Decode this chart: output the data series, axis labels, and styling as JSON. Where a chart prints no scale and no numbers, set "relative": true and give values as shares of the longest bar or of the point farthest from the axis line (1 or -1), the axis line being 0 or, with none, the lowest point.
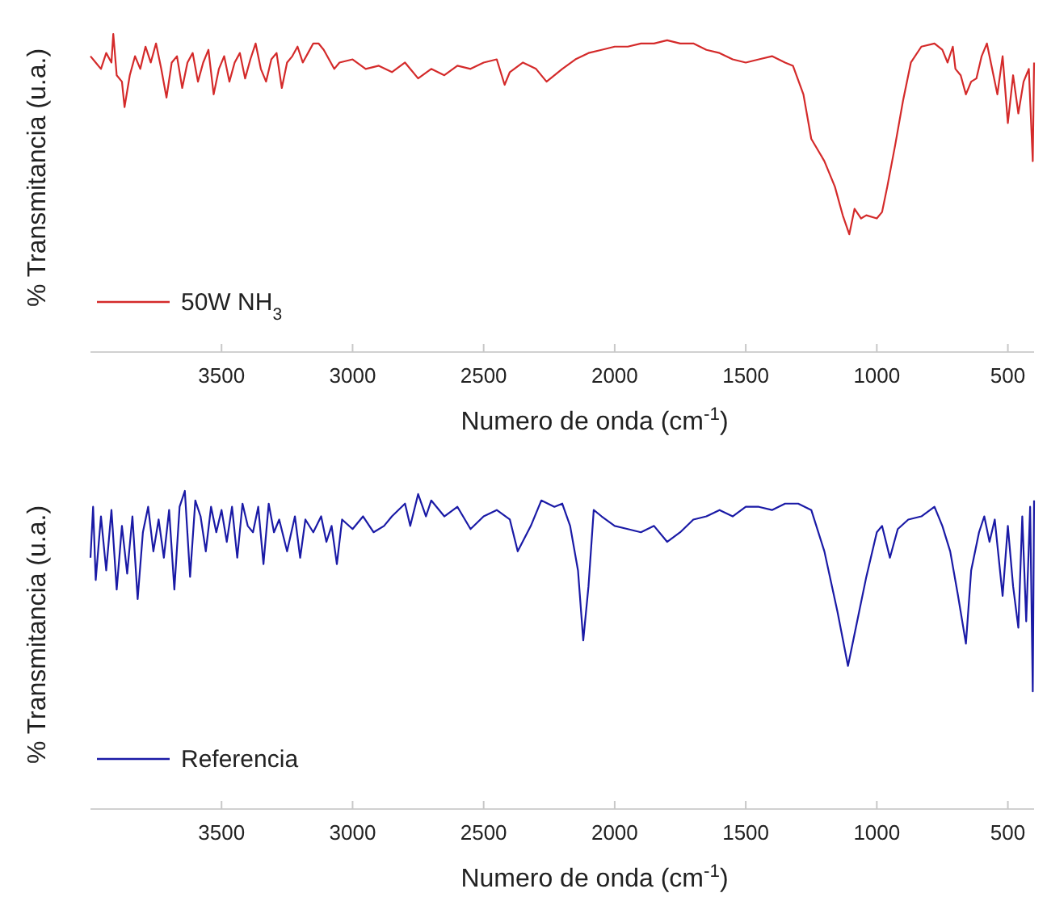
{
  "chart_data": [
    {
      "type": "line",
      "xlabel": "Numero de onda (cm$^{-1}$)",
      "ylabel": "% Transmitancia (u.a.)",
      "relative": true,
      "xlim": [
        4000,
        400
      ],
      "xticks": [
        3500,
        3000,
        2500,
        2000,
        1500,
        1000,
        500
      ],
      "tick_labels": "x",
      "legend": "bottom left",
      "grid": false,
      "x": [
        4000,
        3980,
        3960,
        3940,
        3920,
        3913,
        3900,
        3880,
        3870,
        3850,
        3830,
        3810,
        3790,
        3770,
        3750,
        3730,
        3710,
        3690,
        3670,
        3650,
        3630,
        3610,
        3590,
        3570,
        3550,
        3530,
        3510,
        3490,
        3470,
        3450,
        3430,
        3410,
        3390,
        3370,
        3350,
        3330,
        3310,
        3290,
        3270,
        3250,
        3230,
        3210,
        3190,
        3170,
        3150,
        3130,
        3110,
        3090,
        3070,
        3050,
        3000,
        2950,
        2900,
        2850,
        2800,
        2750,
        2700,
        2650,
        2600,
        2550,
        2500,
        2450,
        2420,
        2400,
        2350,
        2300,
        2260,
        2200,
        2150,
        2100,
        2050,
        2000,
        1950,
        1900,
        1850,
        1800,
        1750,
        1700,
        1650,
        1600,
        1550,
        1500,
        1450,
        1400,
        1350,
        1320,
        1280,
        1250,
        1200,
        1160,
        1130,
        1105,
        1085,
        1060,
        1040,
        1000,
        980,
        960,
        930,
        900,
        870,
        830,
        780,
        750,
        730,
        710,
        700,
        680,
        660,
        640,
        620,
        600,
        580,
        560,
        540,
        520,
        500,
        480,
        460,
        440,
        420,
        405,
        400
      ],
      "series": [
        {
          "name": "50W NH$_{3}$",
          "color": "#d42a2a",
          "values": [
            0.93,
            0.91,
            0.89,
            0.94,
            0.91,
            1,
            0.87,
            0.85,
            0.77,
            0.87,
            0.93,
            0.89,
            0.96,
            0.91,
            0.97,
            0.89,
            0.8,
            0.91,
            0.93,
            0.83,
            0.91,
            0.94,
            0.85,
            0.91,
            0.95,
            0.81,
            0.89,
            0.93,
            0.85,
            0.91,
            0.94,
            0.86,
            0.92,
            0.97,
            0.89,
            0.85,
            0.92,
            0.94,
            0.83,
            0.91,
            0.93,
            0.96,
            0.91,
            0.94,
            0.97,
            0.97,
            0.95,
            0.92,
            0.89,
            0.91,
            0.92,
            0.89,
            0.9,
            0.88,
            0.91,
            0.86,
            0.89,
            0.87,
            0.9,
            0.89,
            0.91,
            0.92,
            0.84,
            0.88,
            0.91,
            0.89,
            0.85,
            0.89,
            0.92,
            0.94,
            0.95,
            0.96,
            0.96,
            0.97,
            0.97,
            0.98,
            0.97,
            0.97,
            0.95,
            0.94,
            0.92,
            0.91,
            0.92,
            0.93,
            0.91,
            0.9,
            0.81,
            0.67,
            0.6,
            0.52,
            0.43,
            0.37,
            0.45,
            0.42,
            0.43,
            0.42,
            0.44,
            0.52,
            0.65,
            0.79,
            0.91,
            0.96,
            0.97,
            0.95,
            0.91,
            0.96,
            0.89,
            0.87,
            0.81,
            0.85,
            0.86,
            0.93,
            0.97,
            0.89,
            0.81,
            0.93,
            0.72,
            0.87,
            0.75,
            0.85,
            0.89,
            0.6,
            0.91
          ]
        }
      ]
    },
    {
      "type": "line",
      "xlabel": "Numero de onda (cm$^{-1}$)",
      "ylabel": "% Transmitancia (u.a.)",
      "relative": true,
      "xlim": [
        4000,
        400
      ],
      "xticks": [
        3500,
        3000,
        2500,
        2000,
        1500,
        1000,
        500
      ],
      "tick_labels": "x",
      "legend": "bottom left",
      "grid": false,
      "x": [
        4000,
        3990,
        3980,
        3960,
        3940,
        3920,
        3900,
        3880,
        3860,
        3840,
        3820,
        3800,
        3780,
        3760,
        3740,
        3720,
        3700,
        3680,
        3660,
        3640,
        3620,
        3600,
        3580,
        3560,
        3540,
        3520,
        3500,
        3480,
        3460,
        3440,
        3420,
        3400,
        3380,
        3360,
        3340,
        3320,
        3300,
        3280,
        3250,
        3220,
        3200,
        3180,
        3150,
        3120,
        3100,
        3080,
        3060,
        3040,
        3000,
        2960,
        2920,
        2880,
        2850,
        2800,
        2780,
        2750,
        2720,
        2700,
        2650,
        2600,
        2550,
        2500,
        2450,
        2400,
        2370,
        2320,
        2280,
        2230,
        2200,
        2170,
        2140,
        2120,
        2100,
        2080,
        2050,
        2000,
        1950,
        1900,
        1850,
        1800,
        1750,
        1700,
        1650,
        1600,
        1550,
        1500,
        1450,
        1400,
        1350,
        1300,
        1250,
        1200,
        1150,
        1110,
        1080,
        1040,
        1000,
        980,
        950,
        920,
        880,
        830,
        780,
        750,
        720,
        690,
        660,
        640,
        610,
        590,
        570,
        550,
        520,
        500,
        480,
        460,
        445,
        430,
        415,
        405,
        400
      ],
      "series": [
        {
          "name": "Referencia",
          "color": "#1a1aa6",
          "values": [
            0.79,
            0.95,
            0.72,
            0.92,
            0.75,
            0.94,
            0.69,
            0.89,
            0.74,
            0.92,
            0.66,
            0.87,
            0.95,
            0.81,
            0.91,
            0.79,
            0.94,
            0.69,
            0.95,
            1,
            0.73,
            0.97,
            0.92,
            0.81,
            0.95,
            0.87,
            0.94,
            0.84,
            0.95,
            0.79,
            0.96,
            0.89,
            0.87,
            0.95,
            0.77,
            0.96,
            0.87,
            0.91,
            0.81,
            0.92,
            0.79,
            0.91,
            0.87,
            0.92,
            0.84,
            0.89,
            0.77,
            0.91,
            0.88,
            0.92,
            0.87,
            0.89,
            0.92,
            0.96,
            0.89,
            0.99,
            0.92,
            0.97,
            0.92,
            0.95,
            0.88,
            0.92,
            0.94,
            0.91,
            0.81,
            0.89,
            0.97,
            0.95,
            0.96,
            0.89,
            0.75,
            0.53,
            0.7,
            0.94,
            0.92,
            0.89,
            0.88,
            0.87,
            0.89,
            0.84,
            0.87,
            0.91,
            0.92,
            0.94,
            0.92,
            0.95,
            0.95,
            0.94,
            0.96,
            0.96,
            0.94,
            0.81,
            0.62,
            0.45,
            0.57,
            0.73,
            0.87,
            0.89,
            0.79,
            0.88,
            0.91,
            0.92,
            0.95,
            0.89,
            0.81,
            0.67,
            0.52,
            0.75,
            0.87,
            0.92,
            0.84,
            0.91,
            0.67,
            0.89,
            0.7,
            0.57,
            0.92,
            0.59,
            0.95,
            0.37,
            0.97
          ]
        }
      ]
    }
  ]
}
